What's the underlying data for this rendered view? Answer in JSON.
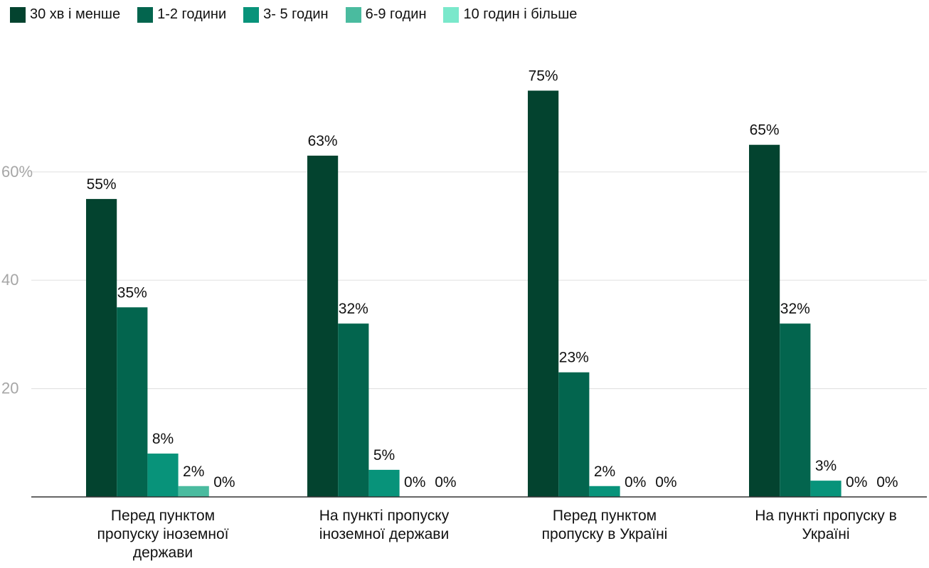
{
  "chart_data": {
    "type": "bar",
    "categories": [
      "Перед пунктом пропуску іноземної держави",
      "На пункті пропуску іноземної держави",
      "Перед пунктом пропуску в Україні",
      "На пункті пропуску в Україні"
    ],
    "category_lines": [
      [
        "Перед пунктом",
        "пропуску іноземної",
        "держави"
      ],
      [
        "На пункті пропуску",
        "іноземної держави"
      ],
      [
        "Перед пунктом",
        "пропуску в Україні"
      ],
      [
        "На пункті пропуску в",
        "Україні"
      ]
    ],
    "series": [
      {
        "name": "30 хв і менше",
        "color": "#03432f",
        "values": [
          55,
          63,
          75,
          65
        ]
      },
      {
        "name": "1-2 години",
        "color": "#03654e",
        "values": [
          35,
          32,
          23,
          32
        ]
      },
      {
        "name": "3- 5 годин",
        "color": "#08937a",
        "values": [
          8,
          5,
          2,
          3
        ]
      },
      {
        "name": "6-9 годин",
        "color": "#4abb9f",
        "values": [
          2,
          0,
          0,
          0
        ]
      },
      {
        "name": "10 годин і більше",
        "color": "#7ae8cb",
        "values": [
          0,
          0,
          0,
          0
        ]
      }
    ],
    "data_labels": [
      [
        "55%",
        "63%",
        "75%",
        "65%"
      ],
      [
        "35%",
        "32%",
        "23%",
        "32%"
      ],
      [
        "8%",
        "5%",
        "2%",
        "3%"
      ],
      [
        "2%",
        "0%",
        "0%",
        "0%"
      ],
      [
        "0%",
        "0%",
        "0%",
        "0%"
      ]
    ],
    "yticks": [
      {
        "value": 20,
        "label": "20"
      },
      {
        "value": 40,
        "label": "40"
      },
      {
        "value": 60,
        "label": "60%"
      }
    ],
    "ylim": [
      0,
      80
    ],
    "grid": true,
    "legend_position": "top-left"
  }
}
